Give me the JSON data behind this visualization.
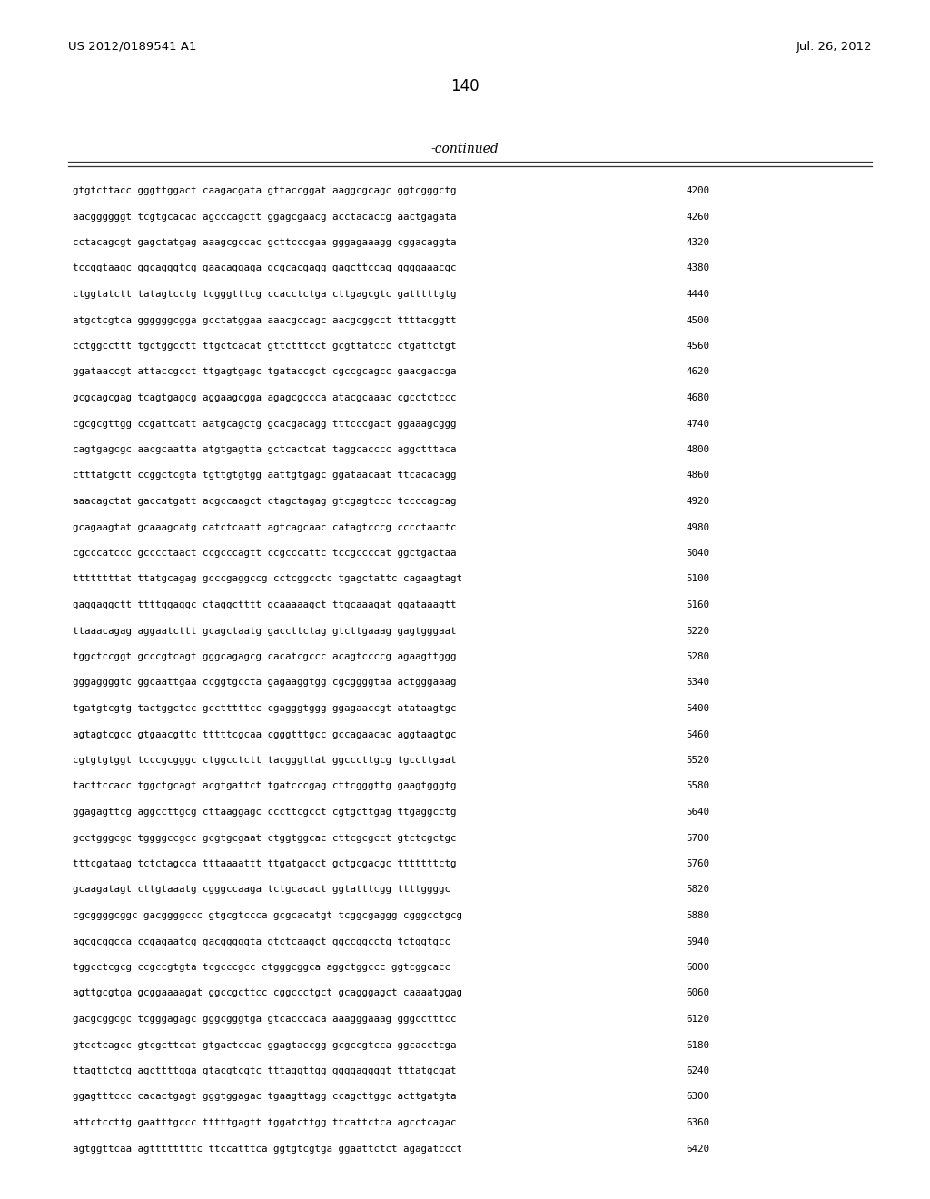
{
  "header_left": "US 2012/0189541 A1",
  "header_right": "Jul. 26, 2012",
  "page_number": "140",
  "continued_label": "-continued",
  "bg_color": "#ffffff",
  "text_color": "#000000",
  "sequences": [
    [
      "gtgtcttacc gggttggact caagacgata gttaccggat aaggcgcagc ggtcgggctg",
      "4200"
    ],
    [
      "aacggggggt tcgtgcacac agcccagctt ggagcgaacg acctacaccg aactgagata",
      "4260"
    ],
    [
      "cctacagcgt gagctatgag aaagcgccac gcttcccgaa gggagaaagg cggacaggta",
      "4320"
    ],
    [
      "tccggtaagc ggcagggtcg gaacaggaga gcgcacgagg gagcttccag ggggaaacgc",
      "4380"
    ],
    [
      "ctggtatctt tatagtcctg tcgggtttcg ccacctctga cttgagcgtc gatttttgtg",
      "4440"
    ],
    [
      "atgctcgtca ggggggcgga gcctatggaa aaacgccagc aacgcggcct ttttacggtt",
      "4500"
    ],
    [
      "cctggccttt tgctggcctt ttgctcacat gttctttcct gcgttatccc ctgattctgt",
      "4560"
    ],
    [
      "ggataaccgt attaccgcct ttgagtgagc tgataccgct cgccgcagcc gaacgaccga",
      "4620"
    ],
    [
      "gcgcagcgag tcagtgagcg aggaagcgga agagcgccca atacgcaaac cgcctctccc",
      "4680"
    ],
    [
      "cgcgcgttgg ccgattcatt aatgcagctg gcacgacagg tttcccgact ggaaagcggg",
      "4740"
    ],
    [
      "cagtgagcgc aacgcaatta atgtgagtta gctcactcat taggcacccc aggctttaca",
      "4800"
    ],
    [
      "ctttatgctt ccggctcgta tgttgtgtgg aattgtgagc ggataacaat ttcacacagg",
      "4860"
    ],
    [
      "aaacagctat gaccatgatt acgccaagct ctagctagag gtcgagtccc tccccagcag",
      "4920"
    ],
    [
      "gcagaagtat gcaaagcatg catctcaatt agtcagcaac catagtcccg cccctaactc",
      "4980"
    ],
    [
      "cgcccatccc gcccctaact ccgcccagtt ccgcccattc tccgccccat ggctgactaa",
      "5040"
    ],
    [
      "ttttttttat ttatgcagag gcccgaggccg cctcggcctc tgagctattc cagaagtagt",
      "5100"
    ],
    [
      "gaggaggctt ttttggaggc ctaggctttt gcaaaaagct ttgcaaagat ggataaagtt",
      "5160"
    ],
    [
      "ttaaacagag aggaatcttt gcagctaatg gaccttctag gtcttgaaag gagtgggaat",
      "5220"
    ],
    [
      "tggctccggt gcccgtcagt gggcagagcg cacatcgccc acagtccccg agaagttggg",
      "5280"
    ],
    [
      "gggaggggtc ggcaattgaa ccggtgccta gagaaggtgg cgcggggtaa actgggaaag",
      "5340"
    ],
    [
      "tgatgtcgtg tactggctcc gcctttttcc cgagggtggg ggagaaccgt atataagtgc",
      "5400"
    ],
    [
      "agtagtcgcc gtgaacgttc tttttcgcaa cgggtttgcc gccagaacac aggtaagtgc",
      "5460"
    ],
    [
      "cgtgtgtggt tcccgcgggc ctggcctctt tacgggttat ggcccttgcg tgccttgaat",
      "5520"
    ],
    [
      "tacttccacc tggctgcagt acgtgattct tgatcccgag cttcgggttg gaagtgggtg",
      "5580"
    ],
    [
      "ggagagttcg aggccttgcg cttaaggagc cccttcgcct cgtgcttgag ttgaggcctg",
      "5640"
    ],
    [
      "gcctgggcgc tggggccgcc gcgtgcgaat ctggtggcac cttcgcgcct gtctcgctgc",
      "5700"
    ],
    [
      "tttcgataag tctctagcca tttaaaattt ttgatgacct gctgcgacgc tttttttctg",
      "5760"
    ],
    [
      "gcaagatagt cttgtaaatg cgggccaaga tctgcacact ggtatttcgg ttttggggc",
      "5820"
    ],
    [
      "cgcggggcggc gacggggccc gtgcgtccca gcgcacatgt tcggcgaggg cgggcctgcg",
      "5880"
    ],
    [
      "agcgcggcca ccgagaatcg gacgggggta gtctcaagct ggccggcctg tctggtgcc",
      "5940"
    ],
    [
      "tggcctcgcg ccgccgtgta tcgcccgcc ctgggcggca aggctggccc ggtcggcacc",
      "6000"
    ],
    [
      "agttgcgtga gcggaaaagat ggccgcttcc cggccctgct gcagggagct caaaatggag",
      "6060"
    ],
    [
      "gacgcggcgc tcgggagagc gggcgggtga gtcacccaca aaagggaaag gggcctttcc",
      "6120"
    ],
    [
      "gtcctcagcc gtcgcttcat gtgactccac ggagtaccgg gcgccgtcca ggcacctcga",
      "6180"
    ],
    [
      "ttagttctcg agcttttgga gtacgtcgtc tttaggttgg ggggaggggt tttatgcgat",
      "6240"
    ],
    [
      "ggagtttccc cacactgagt gggtggagac tgaagttagg ccagcttggc acttgatgta",
      "6300"
    ],
    [
      "attctccttg gaatttgccc tttttgagtt tggatcttgg ttcattctca agcctcagac",
      "6360"
    ],
    [
      "agtggttcaa agttttttttc ttccatttca ggtgtcgtga ggaattctct agagatccct",
      "6420"
    ]
  ]
}
